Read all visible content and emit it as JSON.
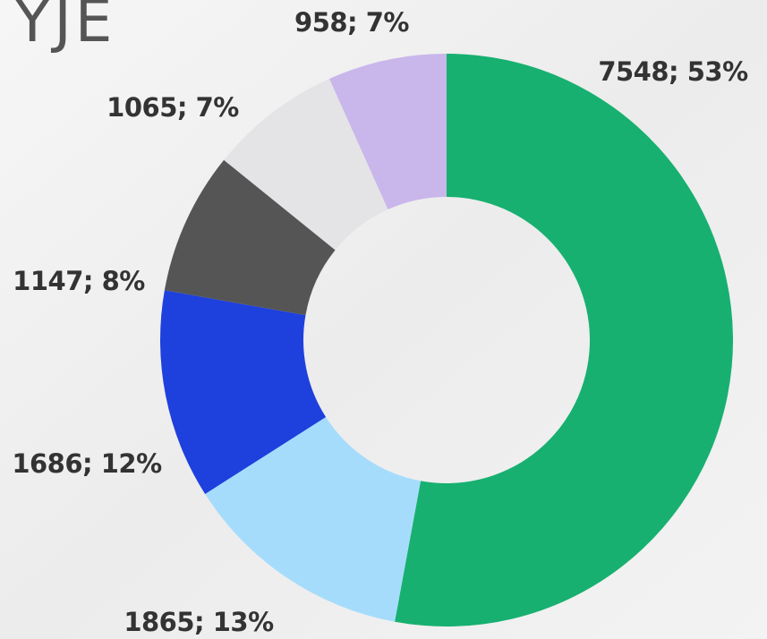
{
  "chart_data": {
    "type": "donut",
    "title": "YJE",
    "categories": [
      null,
      null,
      null,
      null,
      null,
      null
    ],
    "values": [
      7548,
      1865,
      1686,
      1147,
      1065,
      958
    ],
    "value_labels": [
      "7548; 53%",
      "1865; 13%",
      "1686; 12%",
      "1147; 8%",
      "1065; 7%",
      "958; 7%"
    ],
    "colors": [
      "#17b070",
      "#a6dcfb",
      "#1e40dd",
      "#555555",
      "#e4e4e6",
      "#c9b6eb"
    ]
  }
}
